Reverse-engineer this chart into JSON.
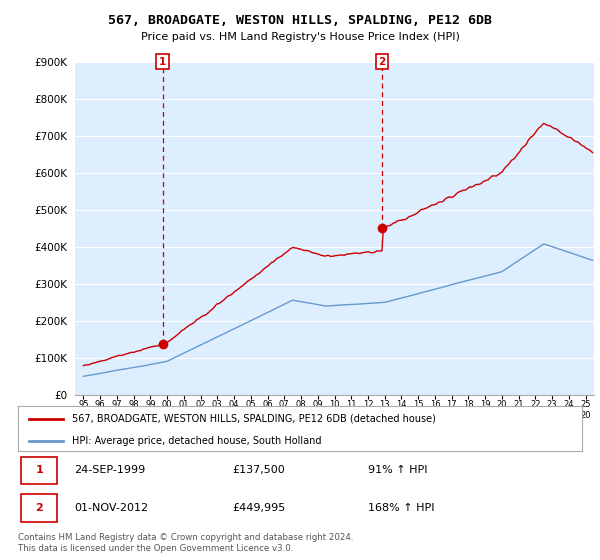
{
  "title": "567, BROADGATE, WESTON HILLS, SPALDING, PE12 6DB",
  "subtitle": "Price paid vs. HM Land Registry's House Price Index (HPI)",
  "ylabel_ticks": [
    "£0",
    "£100K",
    "£200K",
    "£300K",
    "£400K",
    "£500K",
    "£600K",
    "£700K",
    "£800K",
    "£900K"
  ],
  "ytick_values": [
    0,
    100000,
    200000,
    300000,
    400000,
    500000,
    600000,
    700000,
    800000,
    900000
  ],
  "ylim": [
    0,
    900000
  ],
  "xlim_start": 1994.5,
  "xlim_end": 2025.5,
  "legend_line1": "567, BROADGATE, WESTON HILLS, SPALDING, PE12 6DB (detached house)",
  "legend_line2": "HPI: Average price, detached house, South Holland",
  "marker1_x": 1999.73,
  "marker1_y": 137500,
  "marker2_x": 2012.84,
  "marker2_y": 449995,
  "marker1_date": "24-SEP-1999",
  "marker1_price": "£137,500",
  "marker1_hpi": "91% ↑ HPI",
  "marker2_date": "01-NOV-2012",
  "marker2_price": "£449,995",
  "marker2_hpi": "168% ↑ HPI",
  "footer": "Contains HM Land Registry data © Crown copyright and database right 2024.\nThis data is licensed under the Open Government Licence v3.0.",
  "hpi_color": "#6699cc",
  "price_color": "#cc0000",
  "background_color": "#ffffff",
  "plot_bg_color": "#ddeeff",
  "grid_color": "#ffffff"
}
